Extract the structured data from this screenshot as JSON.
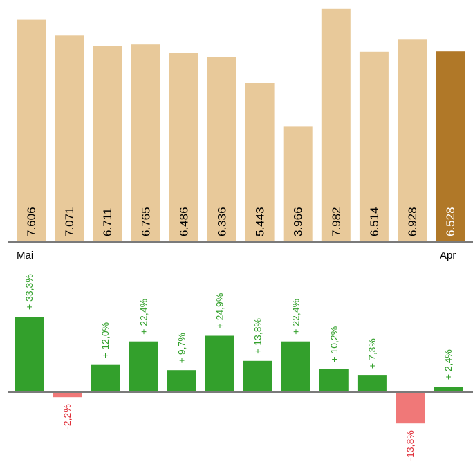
{
  "chart_data": [
    {
      "type": "bar",
      "categories": [
        "",
        "",
        "",
        "",
        "",
        "",
        "",
        "",
        "",
        "",
        "",
        ""
      ],
      "first_label": "Mai",
      "last_label": "Apr",
      "values": [
        7606,
        7071,
        6711,
        6765,
        6486,
        6336,
        5443,
        3966,
        7982,
        6514,
        6928,
        6528
      ],
      "value_labels": [
        "7.606",
        "7.071",
        "6.711",
        "6.765",
        "6.486",
        "6.336",
        "5.443",
        "3.966",
        "7.982",
        "6.514",
        "6.928",
        "6.528"
      ],
      "highlight_index": 11,
      "colors": {
        "bar": "#e8c99a",
        "highlight": "#b07828"
      }
    },
    {
      "type": "bar",
      "values": [
        33.3,
        -2.2,
        12.0,
        22.4,
        9.7,
        24.9,
        13.8,
        22.4,
        10.2,
        7.3,
        -13.8,
        2.4
      ],
      "value_labels": [
        "+ 33,3%",
        "-2,2%",
        "+ 12,0%",
        "+ 22,4%",
        "+ 9,7%",
        "+ 24,9%",
        "+ 13,8%",
        "+ 22,4%",
        "+ 10,2%",
        "+ 7,3%",
        "-13,8%",
        "+ 2,4%"
      ],
      "unit": "%",
      "colors": {
        "positive": "#33a02c",
        "negative": "#f07878",
        "positive_text": "#33a02c",
        "negative_text": "#e0303a"
      }
    }
  ]
}
